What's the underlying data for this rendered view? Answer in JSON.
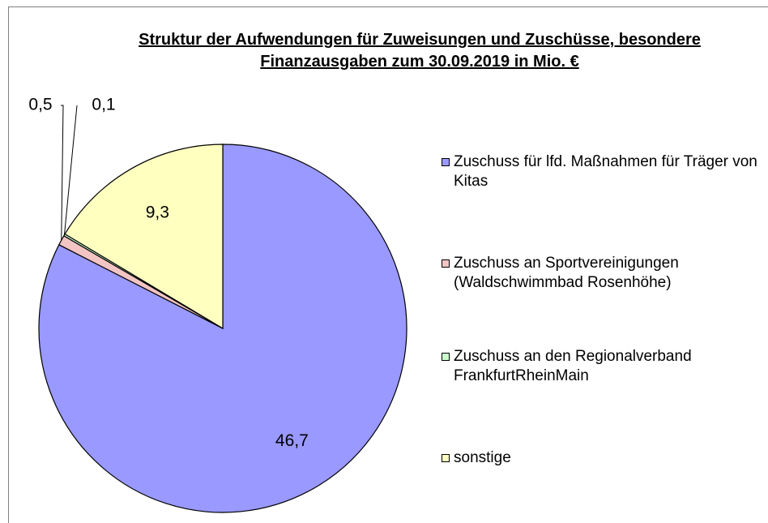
{
  "chart_data": {
    "type": "pie",
    "title": "Struktur der Aufwendungen für Zuweisungen und Zuschüsse, besondere Finanzausgaben zum 30.09.2019 in Mio. €",
    "categories": [
      "Zuschuss für lfd. Maßnahmen für Träger von Kitas",
      "Zuschuss an Sportvereinigungen (Waldschwimmbad Rosenhöhe)",
      "Zuschuss an den Regionalverband FrankfurtRheinMain",
      "sonstige"
    ],
    "values": [
      46.7,
      0.5,
      0.1,
      9.3
    ],
    "value_labels": [
      "46,7",
      "0,5",
      "0,1",
      "9,3"
    ],
    "colors": [
      "#9999ff",
      "#f2c4c4",
      "#ccffcc",
      "#ffffc0"
    ],
    "legend": "right"
  }
}
